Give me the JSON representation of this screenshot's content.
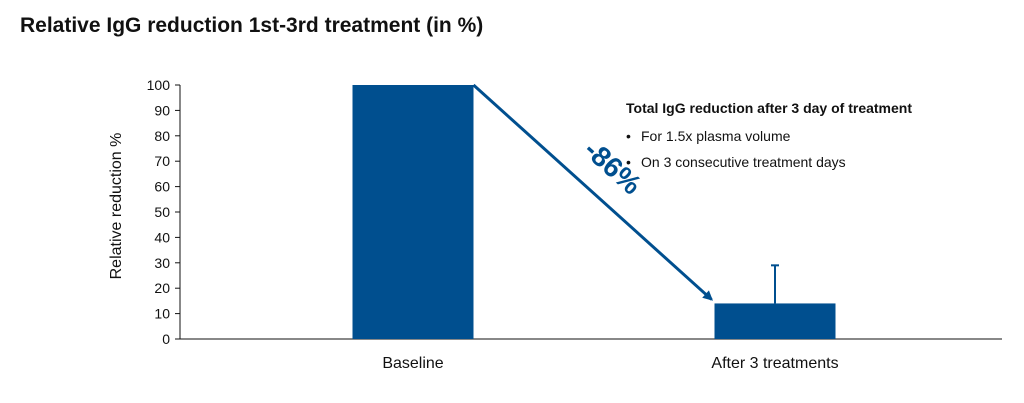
{
  "chart_data": {
    "type": "bar",
    "title": "Relative IgG reduction 1st-3rd treatment (in %)",
    "ylabel": "Relative reduction %",
    "xlabel": "",
    "ylim": [
      0,
      100
    ],
    "yticks": [
      0,
      10,
      20,
      30,
      40,
      50,
      60,
      70,
      80,
      90,
      100
    ],
    "categories": [
      "Baseline",
      "After 3 treatments"
    ],
    "values": [
      100,
      14
    ],
    "error_upper": [
      null,
      29
    ],
    "bar_color": "#004f8f",
    "grid": false,
    "reduction_label": "-86%",
    "annotation": {
      "heading": "Total IgG reduction after 3 day of treatment",
      "items": [
        "For 1.5x plasma volume",
        "On 3 consecutive treatment days"
      ],
      "bullet": "•"
    }
  }
}
